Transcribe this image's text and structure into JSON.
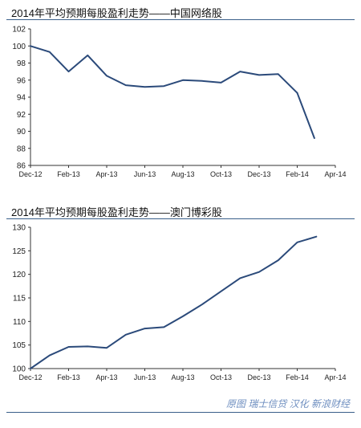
{
  "chart_data": [
    {
      "type": "line",
      "title": "2014年平均预期每股盈利走势——中国网络股",
      "xlabel": "",
      "ylabel": "",
      "x_tick_labels": [
        "Dec-12",
        "Feb-13",
        "Apr-13",
        "Jun-13",
        "Aug-13",
        "Oct-13",
        "Dec-13",
        "Feb-14",
        "Apr-14"
      ],
      "x_range": [
        0,
        16
      ],
      "ylim": [
        86,
        102
      ],
      "y_ticks": [
        86,
        88,
        90,
        92,
        94,
        96,
        98,
        100,
        102
      ],
      "series": [
        {
          "x": [
            0,
            1,
            2,
            3,
            4,
            5,
            6,
            7,
            8,
            9,
            10,
            11,
            12,
            13,
            14
          ],
          "values": [
            100.0,
            99.3,
            97.0,
            98.9,
            96.5,
            95.4,
            95.2,
            95.3,
            96.0,
            95.9,
            95.7,
            97.0,
            96.6,
            96.7,
            94.5
          ]
        },
        {
          "x": [
            14,
            14.9
          ],
          "values": [
            94.5,
            89.2
          ]
        }
      ],
      "color": "#2b4a7a",
      "grid": false
    },
    {
      "type": "line",
      "title": "2014年平均预期每股盈利走势——澳门博彩股",
      "xlabel": "",
      "ylabel": "",
      "x_tick_labels": [
        "Dec-12",
        "Feb-13",
        "Apr-13",
        "Jun-13",
        "Aug-13",
        "Oct-13",
        "Dec-13",
        "Feb-14",
        "Apr-14"
      ],
      "x_range": [
        0,
        16
      ],
      "ylim": [
        100,
        130
      ],
      "y_ticks": [
        100,
        105,
        110,
        115,
        120,
        125,
        130
      ],
      "series": [
        {
          "x": [
            0,
            1,
            2,
            3,
            4,
            5,
            6,
            7,
            8,
            9,
            10,
            11,
            12,
            13,
            14,
            15
          ],
          "values": [
            100.0,
            102.8,
            104.6,
            104.7,
            104.4,
            107.2,
            108.5,
            108.8,
            111.1,
            113.6,
            116.4,
            119.2,
            120.5,
            123.0,
            126.8,
            128.0
          ]
        }
      ],
      "color": "#2b4a7a",
      "grid": false
    }
  ],
  "source_note": "原图 瑞士信贷 汉化 新浪财经"
}
